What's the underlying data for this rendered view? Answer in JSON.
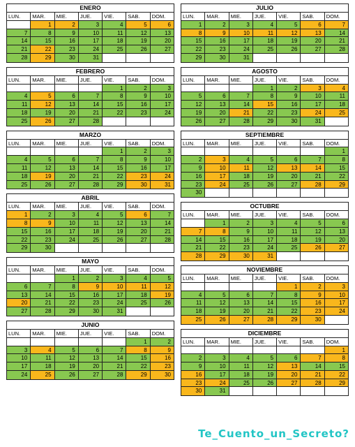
{
  "weekdays": [
    "LUN.",
    "MAR.",
    "MIE.",
    "JUE.",
    "VIE.",
    "SAB.",
    "DOM."
  ],
  "colors": {
    "working": "#88c850",
    "holiday": "#f9b71c",
    "empty": "#ffffff",
    "brand": "#22c5c5"
  },
  "months": [
    {
      "name": "ENERO",
      "start": 1,
      "days": 31,
      "holidays": [
        1,
        2,
        5,
        6,
        22,
        29
      ]
    },
    {
      "name": "FEBRERO",
      "start": 4,
      "days": 28,
      "holidays": [
        5,
        12,
        26
      ]
    },
    {
      "name": "MARZO",
      "start": 4,
      "days": 31,
      "holidays": [
        19,
        23,
        24,
        30,
        31
      ]
    },
    {
      "name": "ABRIL",
      "start": 0,
      "days": 30,
      "holidays": [
        1,
        6,
        8,
        9
      ]
    },
    {
      "name": "MAYO",
      "start": 2,
      "days": 31,
      "holidays": [
        9,
        10,
        11,
        12,
        19,
        20
      ]
    },
    {
      "name": "JUNIO",
      "start": 5,
      "days": 30,
      "holidays": [
        4,
        8,
        9,
        16,
        23,
        25,
        29,
        30
      ]
    },
    {
      "name": "JULIO",
      "start": 0,
      "days": 31,
      "holidays": [
        6,
        7,
        8,
        9,
        10,
        11,
        12,
        13
      ]
    },
    {
      "name": "AGOSTO",
      "start": 3,
      "days": 31,
      "holidays": [
        3,
        4,
        15,
        21,
        24,
        25
      ]
    },
    {
      "name": "SEPTIEMBRE",
      "start": 6,
      "days": 30,
      "holidays": [
        3,
        10,
        11,
        13,
        14,
        17,
        24,
        28,
        29
      ]
    },
    {
      "name": "OCTUBRE",
      "start": 1,
      "days": 31,
      "holidays": [
        7,
        8,
        26,
        27,
        28,
        29,
        30,
        31
      ]
    },
    {
      "name": "NOVIEMBRE",
      "start": 4,
      "days": 30,
      "holidays": [
        1,
        2,
        3,
        9,
        10,
        16,
        17,
        23,
        24,
        25,
        26,
        27,
        28,
        29,
        30
      ]
    },
    {
      "name": "DICIEMBRE",
      "start": 6,
      "days": 31,
      "holidays": [
        1,
        7,
        8,
        13,
        16,
        20,
        21,
        22,
        23,
        24,
        27,
        28,
        29,
        30
      ]
    }
  ],
  "brand": "Te_Cuento_un_Secreto?"
}
